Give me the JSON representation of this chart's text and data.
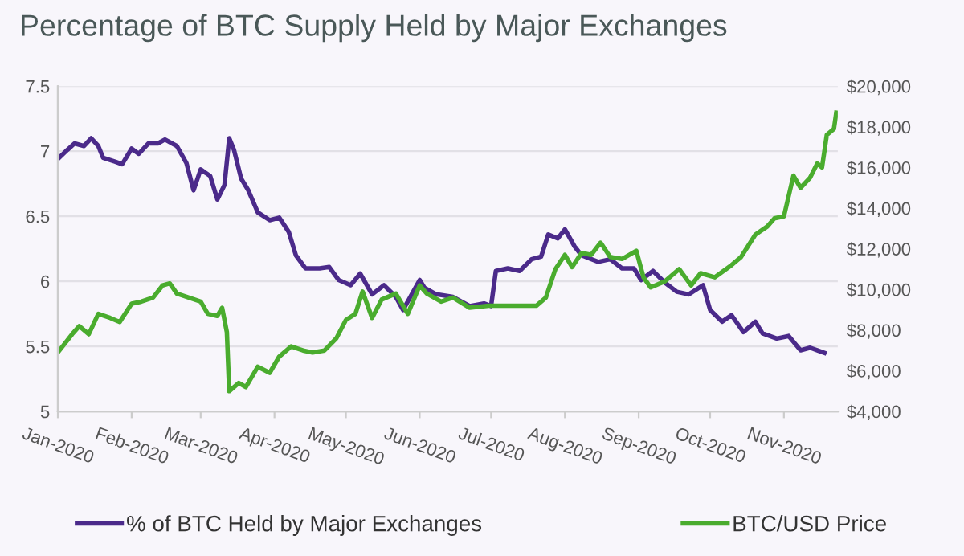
{
  "chart_data": {
    "type": "line",
    "title": "Percentage of BTC Supply Held by Major Exchanges",
    "xlim": [
      "2020-01-01",
      "2020-11-24"
    ],
    "xticks": [
      {
        "value": "2020-01-01",
        "label": "Jan-2020"
      },
      {
        "value": "2020-02-01",
        "label": "Feb-2020"
      },
      {
        "value": "2020-03-01",
        "label": "Mar-2020"
      },
      {
        "value": "2020-04-01",
        "label": "Apr-2020"
      },
      {
        "value": "2020-05-01",
        "label": "May-2020"
      },
      {
        "value": "2020-06-01",
        "label": "Jun-2020"
      },
      {
        "value": "2020-07-01",
        "label": "Jul-2020"
      },
      {
        "value": "2020-08-01",
        "label": "Aug-2020"
      },
      {
        "value": "2020-09-01",
        "label": "Sep-2020"
      },
      {
        "value": "2020-10-01",
        "label": "Oct-2020"
      },
      {
        "value": "2020-11-01",
        "label": "Nov-2020"
      }
    ],
    "ylim": [
      5,
      7.5
    ],
    "yticks": [
      5,
      5.5,
      6,
      6.5,
      7,
      7.5
    ],
    "y2lim": [
      4000,
      20000
    ],
    "y2ticks": [
      {
        "value": 4000,
        "label": "$4,000"
      },
      {
        "value": 6000,
        "label": "$6,000"
      },
      {
        "value": 8000,
        "label": "$8,000"
      },
      {
        "value": 10000,
        "label": "$10,000"
      },
      {
        "value": 12000,
        "label": "$12,000"
      },
      {
        "value": 14000,
        "label": "$14,000"
      },
      {
        "value": 16000,
        "label": "$16,000"
      },
      {
        "value": 18000,
        "label": "$18,000"
      },
      {
        "value": 20000,
        "label": "$20,000"
      }
    ],
    "grid": "y",
    "legend": "bottom",
    "line_style": "solid",
    "marker": "none",
    "series": [
      {
        "name": "% of BTC Held by Major Exchanges",
        "color": "#4b2a8a",
        "x": [
          "2020-01-01",
          "2020-01-05",
          "2020-01-08",
          "2020-01-12",
          "2020-01-15",
          "2020-01-18",
          "2020-01-20",
          "2020-01-25",
          "2020-01-28",
          "2020-02-01",
          "2020-02-04",
          "2020-02-08",
          "2020-02-12",
          "2020-02-15",
          "2020-02-20",
          "2020-02-24",
          "2020-02-27",
          "2020-03-01",
          "2020-03-05",
          "2020-03-08",
          "2020-03-11",
          "2020-03-13",
          "2020-03-15",
          "2020-03-18",
          "2020-03-21",
          "2020-03-25",
          "2020-03-30",
          "2020-04-03",
          "2020-04-07",
          "2020-04-10",
          "2020-04-14",
          "2020-04-20",
          "2020-04-24",
          "2020-04-28",
          "2020-05-03",
          "2020-05-07",
          "2020-05-12",
          "2020-05-17",
          "2020-05-22",
          "2020-05-25",
          "2020-06-01",
          "2020-06-03",
          "2020-06-08",
          "2020-06-15",
          "2020-06-22",
          "2020-06-28",
          "2020-07-01",
          "2020-07-03",
          "2020-07-08",
          "2020-07-13",
          "2020-07-18",
          "2020-07-22",
          "2020-07-25",
          "2020-07-29",
          "2020-08-01",
          "2020-08-05",
          "2020-08-08",
          "2020-08-15",
          "2020-08-20",
          "2020-08-25",
          "2020-08-30",
          "2020-09-02",
          "2020-09-07",
          "2020-09-12",
          "2020-09-17",
          "2020-09-22",
          "2020-09-28",
          "2020-10-01",
          "2020-10-06",
          "2020-10-10",
          "2020-10-15",
          "2020-10-20",
          "2020-10-23",
          "2020-10-29",
          "2020-11-03",
          "2020-11-08",
          "2020-11-12",
          "2020-11-18"
        ],
        "values": [
          6.94,
          7.01,
          7.06,
          7.04,
          7.1,
          7.04,
          6.95,
          6.92,
          6.9,
          7.02,
          6.98,
          7.06,
          7.06,
          7.09,
          7.04,
          6.91,
          6.7,
          6.86,
          6.81,
          6.63,
          6.74,
          7.1,
          7.01,
          6.79,
          6.7,
          6.53,
          6.47,
          6.49,
          6.38,
          6.2,
          6.1,
          6.1,
          6.11,
          6.01,
          5.97,
          6.06,
          5.9,
          5.97,
          5.88,
          5.78,
          6.01,
          5.95,
          5.9,
          5.88,
          5.81,
          5.83,
          5.81,
          6.08,
          6.1,
          6.08,
          6.17,
          6.19,
          6.36,
          6.33,
          6.4,
          6.27,
          6.2,
          6.15,
          6.17,
          6.1,
          6.1,
          6.01,
          6.08,
          5.99,
          5.92,
          5.9,
          5.97,
          5.78,
          5.69,
          5.74,
          5.61,
          5.69,
          5.6,
          5.56,
          5.58,
          5.47,
          5.49,
          5.45
        ]
      },
      {
        "name": "BTC/USD Price",
        "color": "#4aac2e",
        "axis": "y2",
        "x": [
          "2020-01-01",
          "2020-01-03",
          "2020-01-07",
          "2020-01-10",
          "2020-01-14",
          "2020-01-18",
          "2020-01-23",
          "2020-01-27",
          "2020-02-01",
          "2020-02-05",
          "2020-02-10",
          "2020-02-14",
          "2020-02-17",
          "2020-02-20",
          "2020-02-25",
          "2020-03-01",
          "2020-03-04",
          "2020-03-08",
          "2020-03-10",
          "2020-03-12",
          "2020-03-13",
          "2020-03-17",
          "2020-03-20",
          "2020-03-25",
          "2020-03-30",
          "2020-04-03",
          "2020-04-08",
          "2020-04-13",
          "2020-04-17",
          "2020-04-22",
          "2020-04-27",
          "2020-05-01",
          "2020-05-05",
          "2020-05-08",
          "2020-05-12",
          "2020-05-16",
          "2020-05-22",
          "2020-05-27",
          "2020-06-01",
          "2020-06-04",
          "2020-06-10",
          "2020-06-15",
          "2020-06-22",
          "2020-06-30",
          "2020-07-10",
          "2020-07-20",
          "2020-07-24",
          "2020-07-28",
          "2020-08-01",
          "2020-08-04",
          "2020-08-08",
          "2020-08-12",
          "2020-08-16",
          "2020-08-20",
          "2020-08-25",
          "2020-08-31",
          "2020-09-03",
          "2020-09-06",
          "2020-09-12",
          "2020-09-18",
          "2020-09-23",
          "2020-09-27",
          "2020-10-03",
          "2020-10-10",
          "2020-10-14",
          "2020-10-20",
          "2020-10-25",
          "2020-10-28",
          "2020-11-01",
          "2020-11-05",
          "2020-11-08",
          "2020-11-12",
          "2020-11-15",
          "2020-11-17",
          "2020-11-19",
          "2020-11-22",
          "2020-11-23"
        ],
        "values": [
          6900,
          7200,
          7800,
          8200,
          7800,
          8800,
          8600,
          8400,
          9300,
          9400,
          9600,
          10200,
          10300,
          9800,
          9600,
          9400,
          8800,
          8700,
          9100,
          7900,
          5000,
          5400,
          5200,
          6200,
          5900,
          6700,
          7200,
          7000,
          6900,
          7000,
          7600,
          8500,
          8800,
          9900,
          8600,
          9500,
          9800,
          8800,
          10200,
          9800,
          9400,
          9600,
          9100,
          9200,
          9200,
          9200,
          9600,
          11000,
          11700,
          11100,
          11800,
          11700,
          12300,
          11600,
          11500,
          11900,
          10600,
          10100,
          10400,
          11000,
          10200,
          10800,
          10600,
          11200,
          11600,
          12700,
          13100,
          13500,
          13600,
          15600,
          15000,
          15500,
          16200,
          16000,
          17600,
          17900,
          18700
        ]
      }
    ]
  }
}
